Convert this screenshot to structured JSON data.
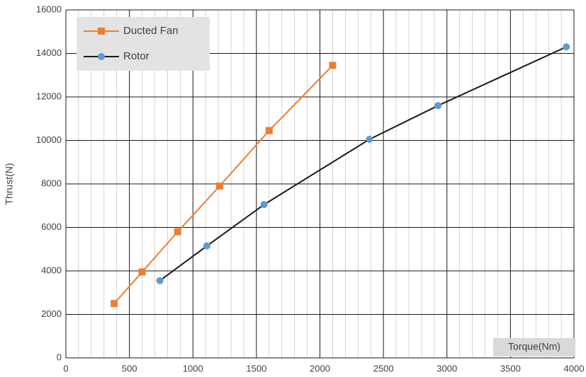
{
  "chart_data": {
    "type": "line",
    "x_label": "Torque(Nm)",
    "y_label": "Thrust(N)",
    "series": [
      {
        "name": "Ducted Fan",
        "color": "#ed7d31",
        "marker": "square",
        "x": [
          380,
          600,
          880,
          1210,
          1600,
          2100
        ],
        "values": [
          2500,
          3950,
          5800,
          7900,
          10450,
          13450
        ]
      },
      {
        "name": "Rotor",
        "color": "#1a1a1a",
        "marker_color": "#5b9bd5",
        "marker": "circle",
        "x": [
          740,
          1110,
          1560,
          2390,
          2930,
          3940
        ],
        "values": [
          3550,
          5150,
          7050,
          10050,
          11600,
          14300
        ]
      }
    ],
    "xlim": [
      0,
      4000
    ],
    "xticks": [
      0,
      500,
      1000,
      1500,
      2000,
      2500,
      3000,
      3500,
      4000
    ],
    "ylim": [
      0,
      16000
    ],
    "yticks": [
      0,
      2000,
      4000,
      6000,
      8000,
      10000,
      12000,
      14000,
      16000
    ],
    "grid": true,
    "legend": "upper left"
  }
}
